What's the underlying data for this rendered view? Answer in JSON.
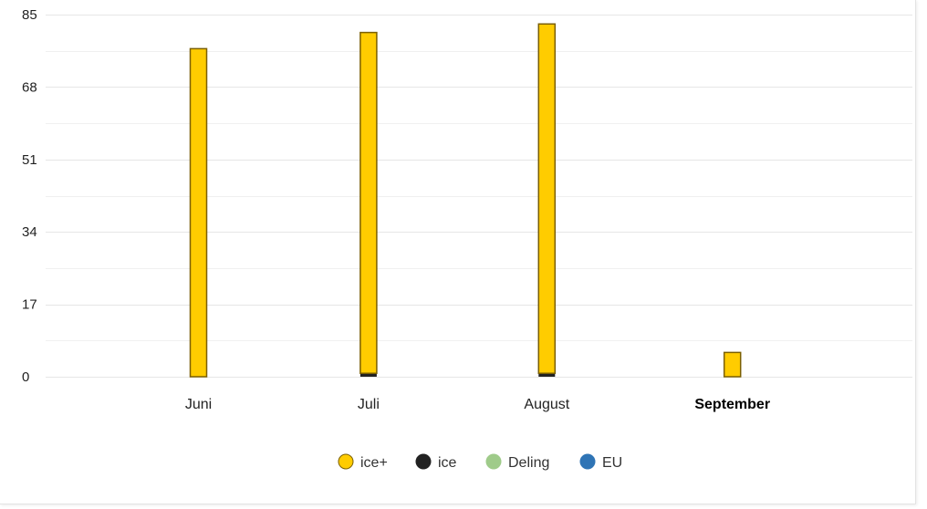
{
  "chart_data": {
    "type": "bar",
    "stacked": true,
    "categories": [
      "Juni",
      "Juli",
      "August",
      "September"
    ],
    "highlighted_category": "September",
    "y_ticks": [
      0,
      17,
      34,
      51,
      68,
      85
    ],
    "ylim": [
      0,
      85
    ],
    "grid": true,
    "legend_position": "bottom",
    "series": [
      {
        "name": "ice",
        "color": "#222222",
        "values": [
          0,
          0.8,
          0.8,
          0
        ]
      },
      {
        "name": "Deling",
        "color": "#9fcb8a",
        "values": [
          0,
          0,
          0,
          0
        ]
      },
      {
        "name": "EU",
        "color": "#2f74b5",
        "values": [
          0,
          0,
          0,
          0
        ]
      },
      {
        "name": "ice+",
        "color": "#ffcc00",
        "border_color": "#7a5f00",
        "values": [
          77,
          80,
          82,
          5.7
        ]
      }
    ],
    "legend_order": [
      "ice+",
      "ice",
      "Deling",
      "EU"
    ]
  }
}
